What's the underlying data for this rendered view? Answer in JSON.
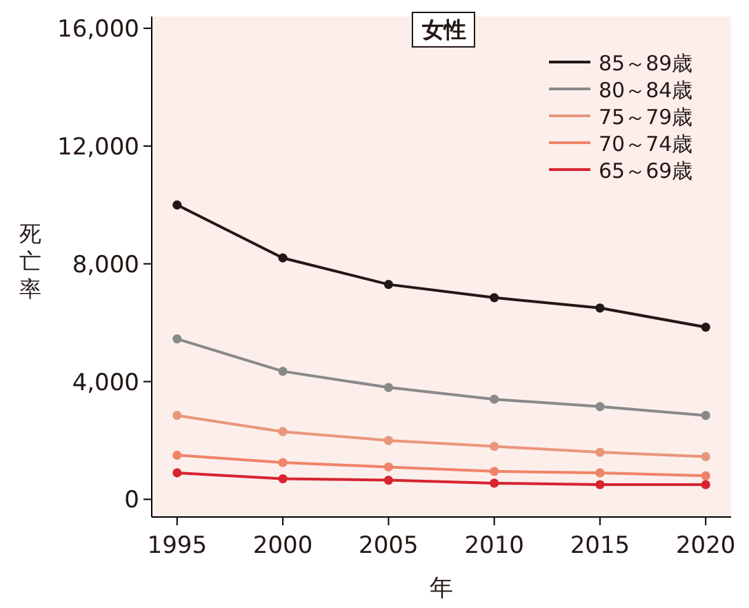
{
  "chart_data": {
    "type": "line",
    "title": "女性",
    "xlabel": "年",
    "ylabel": "死亡率",
    "x": [
      1995,
      2000,
      2005,
      2010,
      2015,
      2020
    ],
    "series": [
      {
        "name": "85～89歳",
        "color": "#231815",
        "values": [
          10000,
          8200,
          7300,
          6850,
          6500,
          5850
        ]
      },
      {
        "name": "80～84歳",
        "color": "#898989",
        "values": [
          5450,
          4350,
          3800,
          3400,
          3150,
          2850
        ]
      },
      {
        "name": "75～79歳",
        "color": "#e9967a",
        "values": [
          2850,
          2300,
          2000,
          1800,
          1600,
          1450
        ]
      },
      {
        "name": "70～74歳",
        "color": "#ef8468",
        "values": [
          1500,
          1250,
          1100,
          950,
          900,
          800
        ]
      },
      {
        "name": "65～69歳",
        "color": "#d7242f",
        "values": [
          900,
          700,
          650,
          550,
          500,
          500
        ]
      }
    ],
    "xlim": [
      1993.8,
      2021.2
    ],
    "ylim": [
      -600,
      16400
    ],
    "xticks": [
      1995,
      2000,
      2005,
      2010,
      2015,
      2020
    ],
    "yticks": [
      {
        "value": 0,
        "label": "0"
      },
      {
        "value": 4000,
        "label": "4,000"
      },
      {
        "value": 8000,
        "label": "8,000"
      },
      {
        "value": 12000,
        "label": "12,000"
      },
      {
        "value": 16000,
        "label": "16,000"
      }
    ],
    "marker": "circle",
    "line_style": "solid",
    "legend": "top right",
    "grid": false
  }
}
